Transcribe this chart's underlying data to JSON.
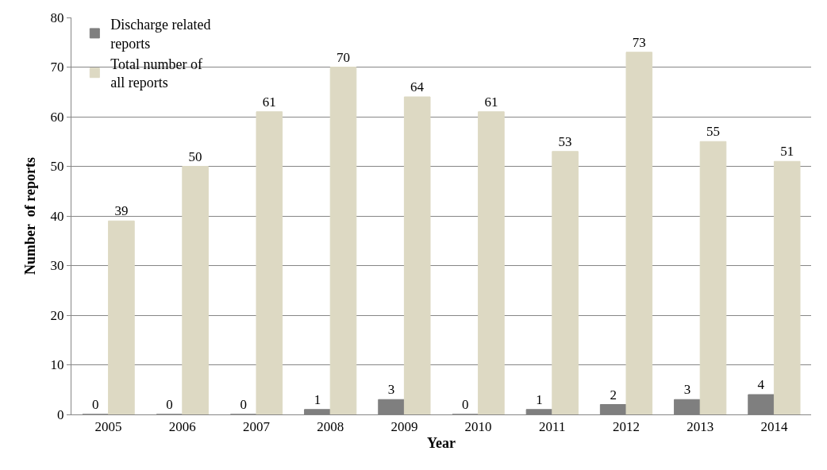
{
  "chart_data": {
    "type": "bar",
    "xlabel": "Year",
    "ylabel": "Number  of reports",
    "categories": [
      "2005",
      "2006",
      "2007",
      "2008",
      "2009",
      "2010",
      "2011",
      "2012",
      "2013",
      "2014"
    ],
    "series": [
      {
        "name": "Discharge related reports",
        "color": "#7f7f7f",
        "values": [
          0,
          0,
          0,
          1,
          3,
          0,
          1,
          2,
          3,
          4
        ]
      },
      {
        "name": "Total number of all reports",
        "color": "#ddd9c3",
        "values": [
          39,
          50,
          61,
          70,
          64,
          61,
          53,
          73,
          55,
          51
        ]
      }
    ],
    "ylim": [
      0,
      80
    ],
    "yticks": [
      0,
      10,
      20,
      30,
      40,
      50,
      60,
      70,
      80
    ],
    "grid": "y",
    "legend": "top left",
    "data_labels": true
  }
}
